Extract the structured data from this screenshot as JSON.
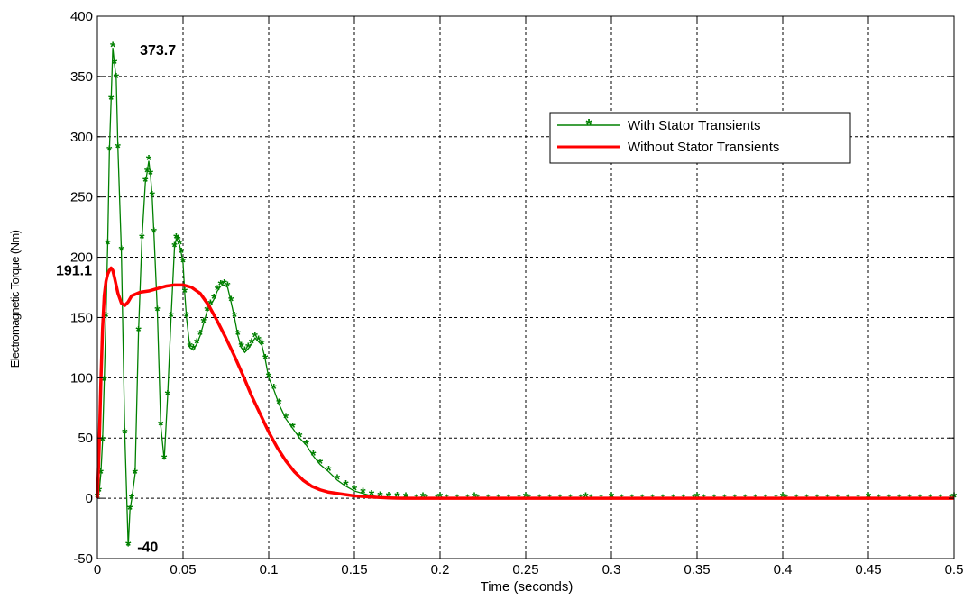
{
  "chart_data": {
    "type": "line",
    "title": "",
    "xlabel": "Time (seconds)",
    "ylabel": "Electromagnetic Torque (Nm)",
    "xlim": [
      0,
      0.5
    ],
    "ylim": [
      -50,
      400
    ],
    "x_ticks": [
      "0",
      "0.05",
      "0.1",
      "0.15",
      "0.2",
      "0.25",
      "0.3",
      "0.35",
      "0.4",
      "0.45",
      "0.5"
    ],
    "y_ticks": [
      "-50",
      "0",
      "50",
      "100",
      "150",
      "200",
      "250",
      "300",
      "350",
      "400"
    ],
    "grid": true,
    "legend_position": "top-right",
    "series": [
      {
        "name": "With Stator Transients",
        "color": "#008000",
        "marker": "asterisk",
        "x": [
          0,
          0.001,
          0.002,
          0.003,
          0.004,
          0.005,
          0.006,
          0.007,
          0.008,
          0.009,
          0.01,
          0.011,
          0.012,
          0.014,
          0.016,
          0.018,
          0.019,
          0.02,
          0.022,
          0.024,
          0.026,
          0.028,
          0.029,
          0.03,
          0.031,
          0.032,
          0.033,
          0.035,
          0.037,
          0.039,
          0.041,
          0.043,
          0.045,
          0.046,
          0.047,
          0.048,
          0.049,
          0.05,
          0.051,
          0.052,
          0.054,
          0.056,
          0.058,
          0.06,
          0.062,
          0.064,
          0.066,
          0.068,
          0.07,
          0.072,
          0.074,
          0.076,
          0.078,
          0.08,
          0.082,
          0.084,
          0.086,
          0.088,
          0.09,
          0.092,
          0.094,
          0.096,
          0.098,
          0.1,
          0.103,
          0.106,
          0.11,
          0.114,
          0.118,
          0.122,
          0.126,
          0.13,
          0.135,
          0.14,
          0.145,
          0.15,
          0.155,
          0.16,
          0.165,
          0.17,
          0.175,
          0.18,
          0.19,
          0.2,
          0.22,
          0.25,
          0.285,
          0.3,
          0.35,
          0.4,
          0.45,
          0.5
        ],
        "values": [
          0,
          5,
          20,
          47,
          97,
          150,
          210,
          288,
          330,
          373.7,
          360,
          348,
          290,
          205,
          53,
          -40,
          -10,
          -1,
          20,
          138,
          215,
          262,
          270,
          280,
          268,
          250,
          220,
          155,
          60,
          32,
          85,
          150,
          208,
          215,
          213,
          210,
          203,
          195,
          170,
          150,
          125,
          123,
          128,
          135,
          145,
          155,
          160,
          165,
          172,
          176,
          177,
          175,
          163,
          150,
          135,
          125,
          121,
          124,
          128,
          133,
          130,
          127,
          115,
          100,
          90,
          78,
          66,
          58,
          50,
          44,
          35,
          28,
          22,
          15,
          10,
          6,
          4,
          2,
          1,
          0.5,
          0.3,
          0.1,
          0,
          0,
          0,
          0,
          0,
          0,
          0,
          0,
          0,
          0
        ]
      },
      {
        "name": "Without Stator Transients",
        "color": "#ff0000",
        "marker": "none",
        "x": [
          0,
          0.001,
          0.002,
          0.003,
          0.004,
          0.005,
          0.006,
          0.007,
          0.008,
          0.009,
          0.01,
          0.012,
          0.014,
          0.016,
          0.018,
          0.02,
          0.025,
          0.03,
          0.035,
          0.04,
          0.045,
          0.05,
          0.055,
          0.06,
          0.065,
          0.07,
          0.075,
          0.08,
          0.085,
          0.09,
          0.095,
          0.1,
          0.105,
          0.11,
          0.115,
          0.12,
          0.125,
          0.13,
          0.135,
          0.14,
          0.145,
          0.15,
          0.155,
          0.16,
          0.165,
          0.17,
          0.175,
          0.18,
          0.2,
          0.25,
          0.3,
          0.35,
          0.4,
          0.45,
          0.5
        ],
        "values": [
          0,
          40,
          95,
          140,
          168,
          180,
          186,
          189,
          191.1,
          189,
          183,
          170,
          162,
          160,
          163,
          168,
          171,
          172,
          174,
          176,
          177,
          177,
          175,
          170,
          160,
          147,
          133,
          118,
          102,
          85,
          70,
          55,
          42,
          31,
          22,
          15,
          10,
          7,
          5,
          4,
          3,
          2,
          1.5,
          1,
          0.6,
          0.3,
          0.1,
          0,
          0,
          0,
          0,
          0,
          0,
          0,
          0
        ]
      }
    ],
    "annotations": [
      {
        "text": "373.7",
        "x": 0.009,
        "y": 373.7
      },
      {
        "text": "-40",
        "x": 0.018,
        "y": -40
      },
      {
        "text": "191.1",
        "x": 0.008,
        "y": 191.1
      }
    ]
  }
}
